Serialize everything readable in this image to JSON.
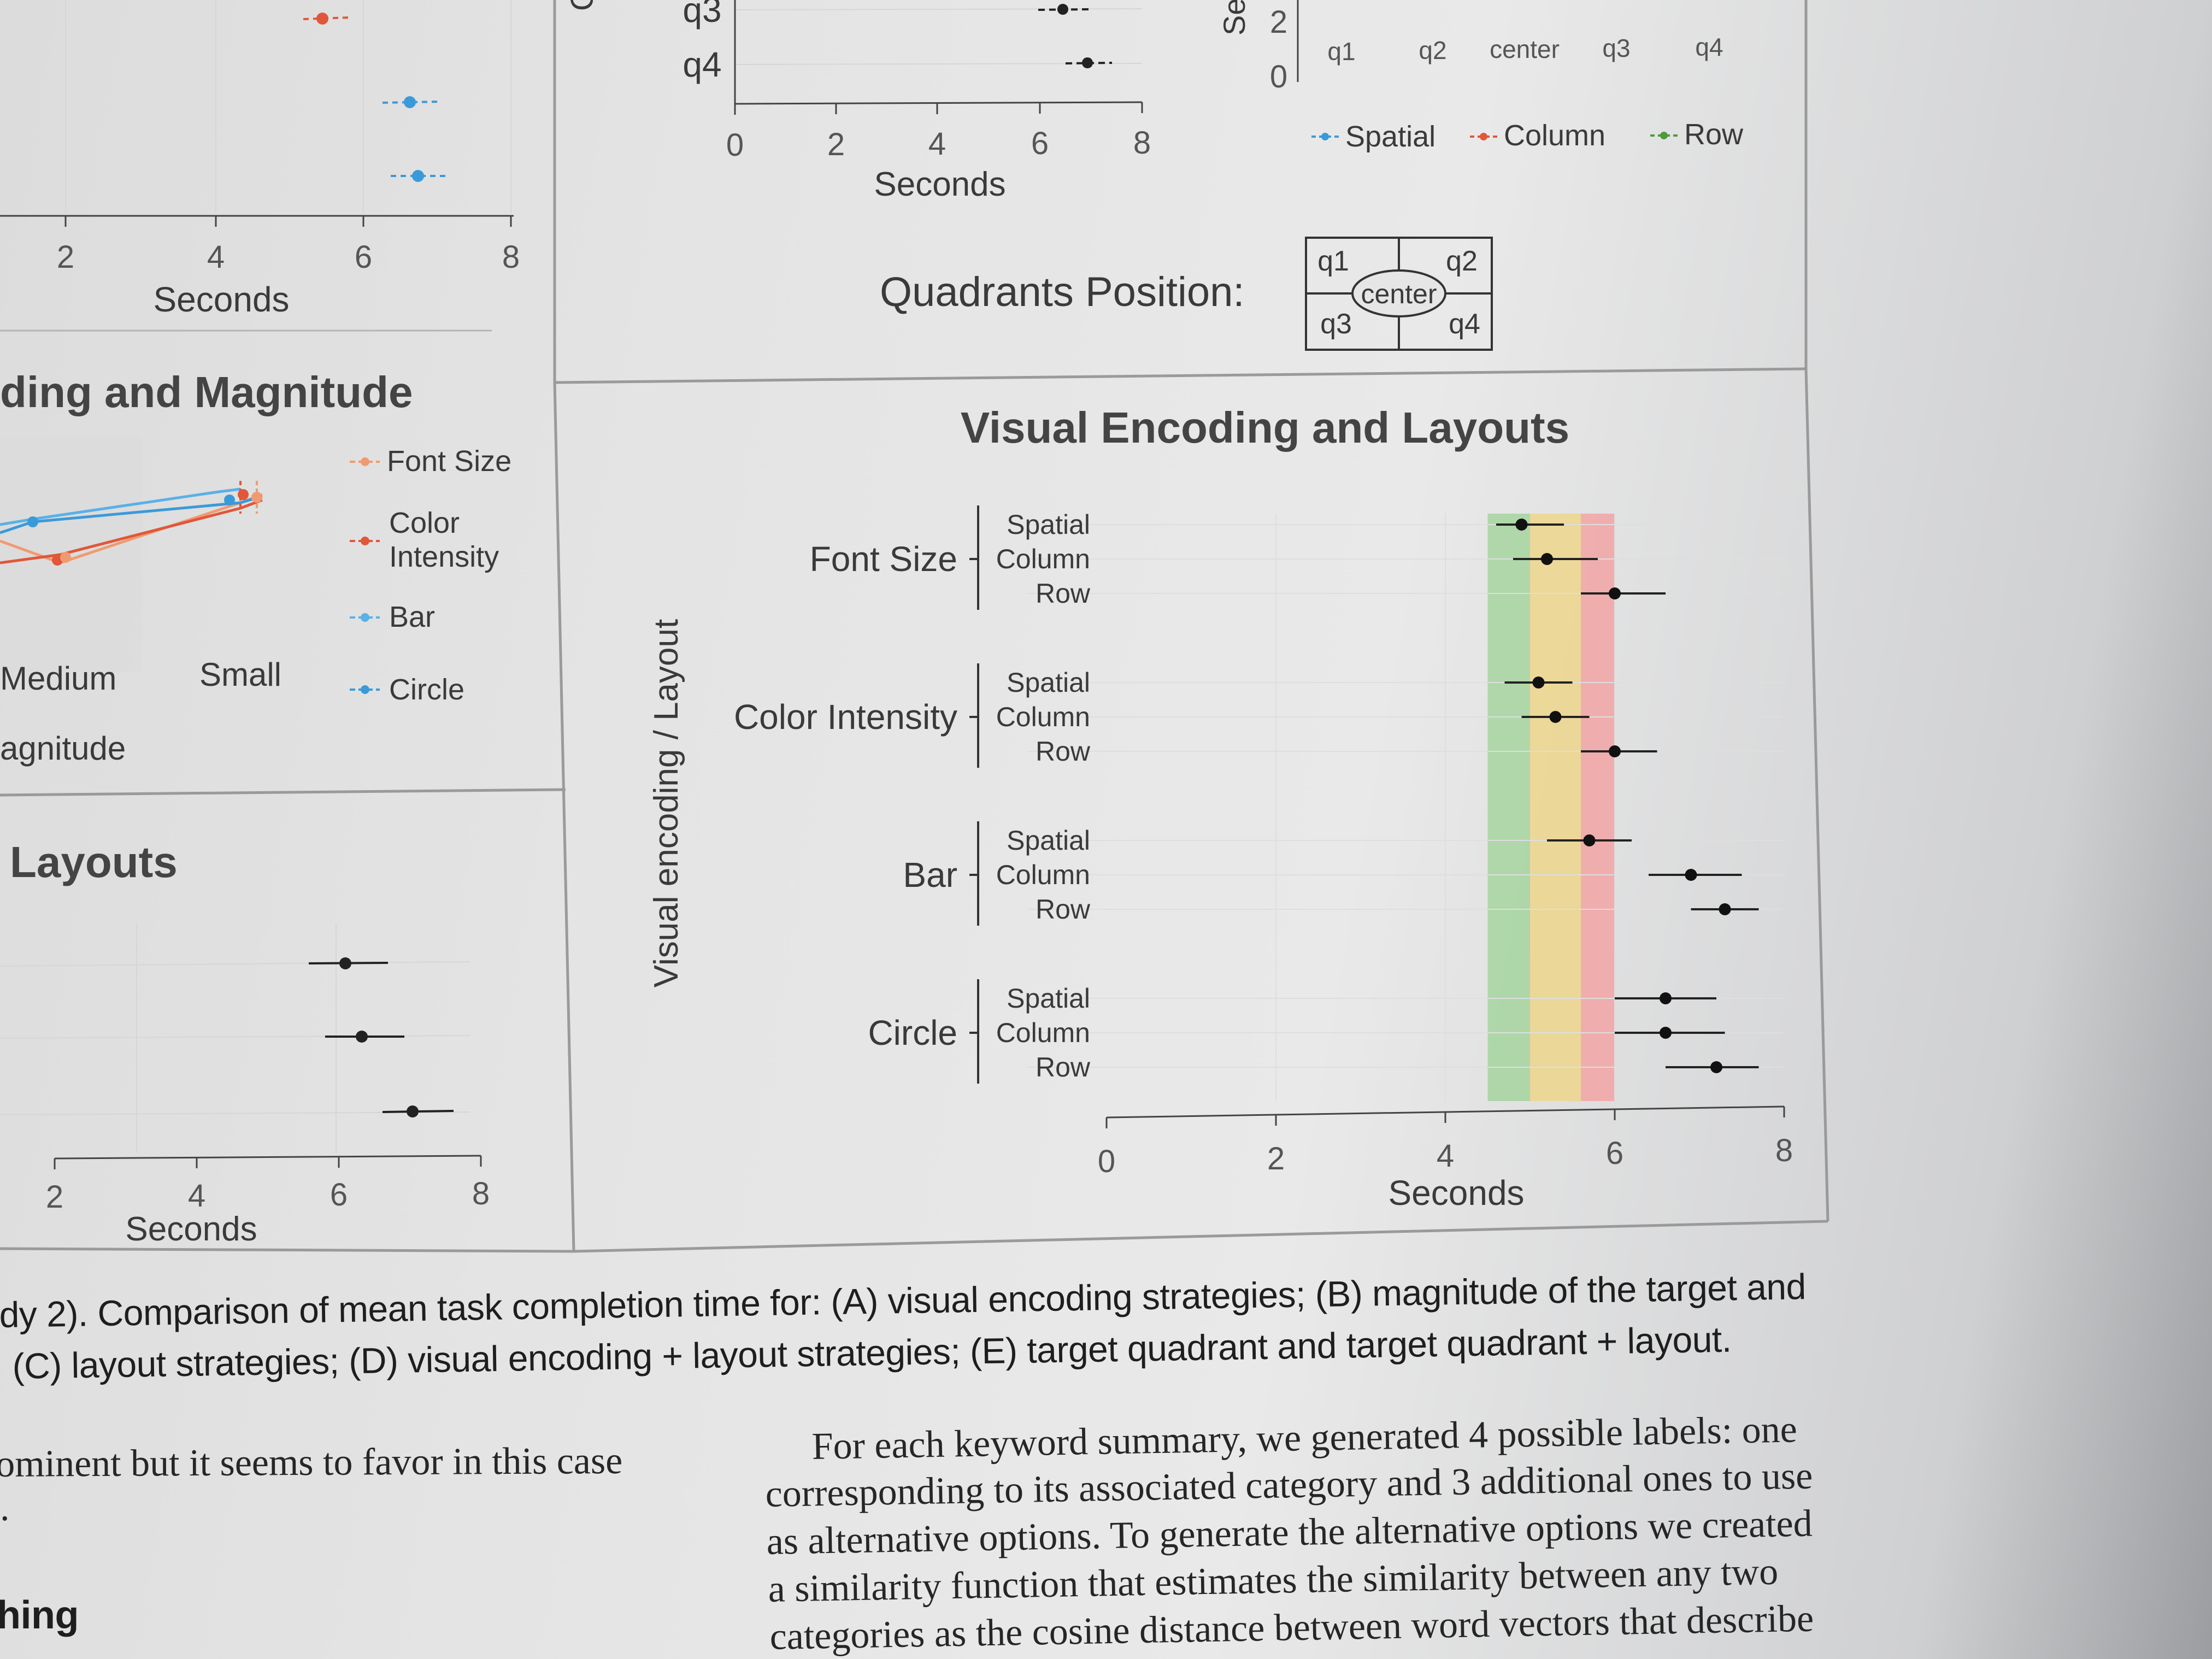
{
  "panel_a": {
    "axis": {
      "title": "Seconds",
      "ticks": [
        "2",
        "4",
        "6",
        "8"
      ]
    }
  },
  "panel_b": {
    "title": "ding and Magnitude",
    "xlabel": "agnitude",
    "categories": [
      "Medium",
      "Small"
    ],
    "legend": [
      "Font Size",
      "Color Intensity",
      "Bar",
      "Circle"
    ]
  },
  "panel_c": {
    "title": "Layouts",
    "axis": {
      "title": "Seconds",
      "ticks": [
        "2",
        "4",
        "6",
        "8"
      ]
    }
  },
  "panel_e": {
    "y_categories": [
      "q3",
      "q4"
    ],
    "axis": {
      "title": "Seconds",
      "ticks": [
        "0",
        "2",
        "4",
        "6",
        "8"
      ]
    },
    "y_label_fragment": "Q",
    "right": {
      "y_label_fragment": "Se",
      "y_ticks": [
        "2",
        "0"
      ],
      "x_categories": [
        "q1",
        "q2",
        "center",
        "q3",
        "q4"
      ],
      "legend": [
        "Spatial",
        "Column",
        "Row"
      ]
    },
    "quadrants": {
      "title": "Quadrants Position:",
      "labels": [
        "q1",
        "q2",
        "center",
        "q3",
        "q4"
      ]
    }
  },
  "chart_data": {
    "type": "scatter",
    "title": "Visual Encoding and Layouts",
    "xlabel": "Seconds",
    "ylabel": "Visual encoding / Layout",
    "xlim": [
      0,
      8
    ],
    "x_ticks": [
      "0",
      "2",
      "4",
      "6",
      "8"
    ],
    "groups": [
      "Font Size",
      "Color Intensity",
      "Bar",
      "Circle"
    ],
    "layouts": [
      "Spatial",
      "Column",
      "Row"
    ],
    "bands": [
      {
        "range": [
          4.5,
          5.0
        ],
        "color": "#a8d5a2"
      },
      {
        "range": [
          5.0,
          5.6
        ],
        "color": "#ecd68f"
      },
      {
        "range": [
          5.6,
          6.0
        ],
        "color": "#f2a7a7"
      }
    ],
    "points": [
      {
        "group": "Font Size",
        "layout": "Spatial",
        "mean": 4.9,
        "lo": 4.6,
        "hi": 5.4
      },
      {
        "group": "Font Size",
        "layout": "Column",
        "mean": 5.2,
        "lo": 4.8,
        "hi": 5.8
      },
      {
        "group": "Font Size",
        "layout": "Row",
        "mean": 6.0,
        "lo": 5.6,
        "hi": 6.6
      },
      {
        "group": "Color Intensity",
        "layout": "Spatial",
        "mean": 5.1,
        "lo": 4.7,
        "hi": 5.5
      },
      {
        "group": "Color Intensity",
        "layout": "Column",
        "mean": 5.3,
        "lo": 4.9,
        "hi": 5.7
      },
      {
        "group": "Color Intensity",
        "layout": "Row",
        "mean": 6.0,
        "lo": 5.6,
        "hi": 6.5
      },
      {
        "group": "Bar",
        "layout": "Spatial",
        "mean": 5.7,
        "lo": 5.2,
        "hi": 6.2
      },
      {
        "group": "Bar",
        "layout": "Column",
        "mean": 6.9,
        "lo": 6.4,
        "hi": 7.5
      },
      {
        "group": "Bar",
        "layout": "Row",
        "mean": 7.3,
        "lo": 6.9,
        "hi": 7.7
      },
      {
        "group": "Circle",
        "layout": "Spatial",
        "mean": 6.6,
        "lo": 6.0,
        "hi": 7.2
      },
      {
        "group": "Circle",
        "layout": "Column",
        "mean": 6.6,
        "lo": 6.0,
        "hi": 7.3
      },
      {
        "group": "Circle",
        "layout": "Row",
        "mean": 7.2,
        "lo": 6.6,
        "hi": 7.7
      }
    ]
  },
  "caption": {
    "line1": "dy 2). Comparison of mean task completion time for: (A) visual encoding strategies; (B) magnitude of the target and",
    "line2": "(C) layout strategies; (D) visual encoding + layout strategies; (E) target quadrant and target quadrant + layout."
  },
  "left_text": {
    "line1": "ominent but it seems to favor in this case",
    "line2": ".",
    "heading": "hing"
  },
  "right_text": {
    "line1": "For each keyword summary, we generated 4 possible labels: one",
    "line2": "corresponding to its associated category and 3 additional ones to use",
    "line3": "as alternative options. To generate the alternative options we created",
    "line4": "a similarity function that estimates the similarity between any two",
    "line5": "categories as the cosine distance between word vectors that describe"
  },
  "colors": {
    "spatial": "#3a9ad9",
    "column": "#e0573a",
    "row": "#4e9a3c",
    "ink": "#222222"
  }
}
